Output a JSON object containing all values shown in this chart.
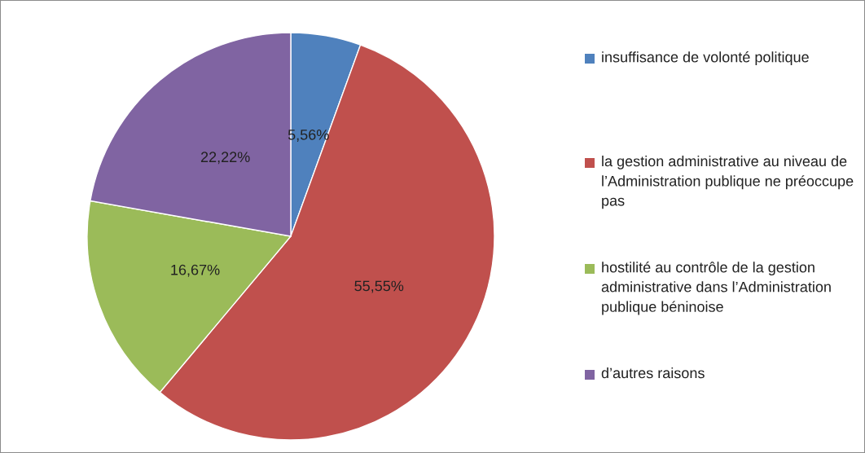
{
  "chart_data": {
    "type": "pie",
    "categories": [
      "insuffisance de volonté politique",
      "la gestion administrative au niveau de l’Administration publique ne préoccupe pas",
      "hostilité au contrôle de la gestion administrative dans l’Administration publique béninoise",
      "d’autres raisons"
    ],
    "values": [
      5.56,
      55.55,
      16.67,
      22.22
    ],
    "value_labels": [
      "5,56%",
      "55,55%",
      "16,67%",
      "22,22%"
    ],
    "colors": [
      "#4f81bd",
      "#c0504d",
      "#9bbb59",
      "#8064a2"
    ],
    "legend": "right"
  }
}
